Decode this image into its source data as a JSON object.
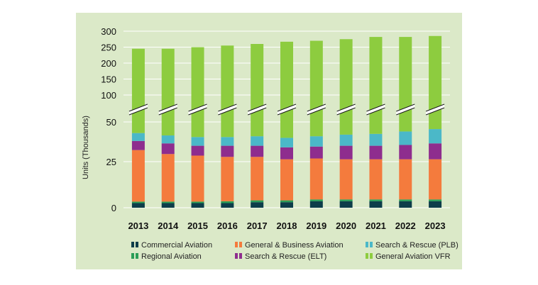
{
  "chart_data": {
    "type": "bar",
    "stacked": true,
    "categories": [
      "2013",
      "2014",
      "2015",
      "2016",
      "2017",
      "2018",
      "2019",
      "2020",
      "2021",
      "2022",
      "2023"
    ],
    "ylabel": "Units (Thousands)",
    "axis_break": {
      "between": [
        50,
        100
      ]
    },
    "y_ticks_lower": [
      0,
      25,
      50
    ],
    "y_ticks_upper": [
      100,
      150,
      200,
      250,
      300
    ],
    "series": [
      {
        "name": "Commercial Aviation",
        "color": "#0d3d4a",
        "values": [
          2.5,
          2.5,
          2.5,
          2.5,
          3,
          3,
          3.5,
          3.5,
          3.5,
          3.5,
          3.5
        ]
      },
      {
        "name": "Regional Aviation",
        "color": "#2a9d57",
        "values": [
          0.8,
          0.8,
          0.8,
          1,
          1,
          1,
          1,
          1,
          1,
          1,
          1
        ]
      },
      {
        "name": "General & Business Aviation",
        "color": "#f47b3d",
        "values": [
          29,
          26.5,
          25.5,
          24.5,
          24,
          22.5,
          22.5,
          22,
          22,
          22,
          22
        ]
      },
      {
        "name": "Search & Rescue (ELT)",
        "color": "#8e2d8e",
        "values": [
          5.7,
          6.7,
          6.2,
          7,
          7,
          7.5,
          7.5,
          8.5,
          8.5,
          9,
          10
        ]
      },
      {
        "name": "Search & Rescue (PLB)",
        "color": "#4bb8c8",
        "values": [
          5,
          5,
          5.5,
          5.5,
          6,
          6,
          6.5,
          7,
          7.5,
          8.5,
          9
        ]
      },
      {
        "name": "General Aviation VFR",
        "color": "#8dcc3f",
        "total_values": [
          245,
          245,
          250,
          255,
          260,
          267,
          270,
          275,
          282,
          282,
          285
        ]
      }
    ],
    "legend": [
      "Commercial Aviation",
      "General & Business Aviation",
      "Search & Rescue (PLB)",
      "Regional Aviation",
      "Search & Rescue (ELT)",
      "General Aviation VFR"
    ]
  }
}
